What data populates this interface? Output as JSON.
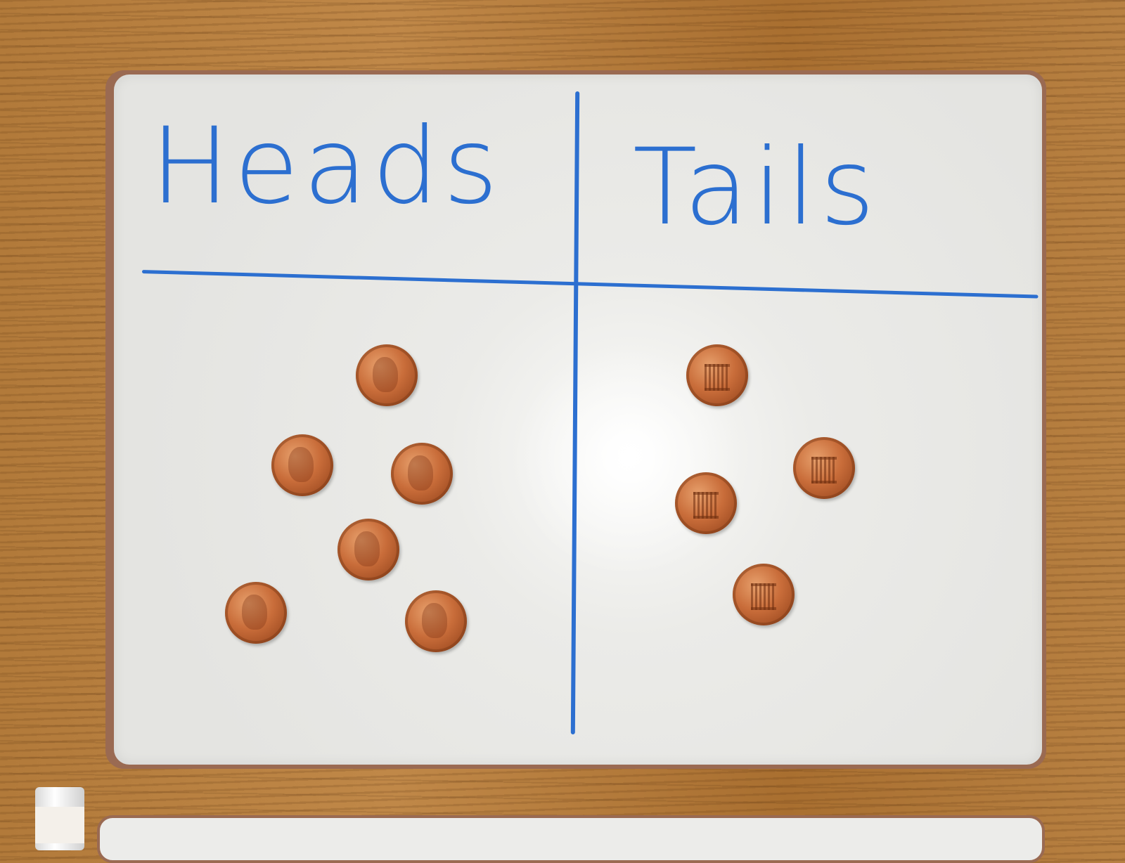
{
  "board": {
    "left_heading": "Heads",
    "right_heading": "Tails",
    "ink_color": "#2c6fd0"
  },
  "coins": {
    "heads_count": 6,
    "tails_count": 4,
    "coin_color": "#c96d3a"
  }
}
